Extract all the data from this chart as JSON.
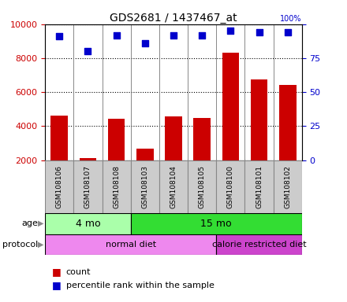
{
  "title": "GDS2681 / 1437467_at",
  "samples": [
    "GSM108106",
    "GSM108107",
    "GSM108108",
    "GSM108103",
    "GSM108104",
    "GSM108105",
    "GSM108100",
    "GSM108101",
    "GSM108102"
  ],
  "counts": [
    4600,
    2100,
    4450,
    2650,
    4550,
    4500,
    8300,
    6750,
    6400
  ],
  "percentile_ranks": [
    91,
    80,
    92,
    86,
    92,
    92,
    95,
    94,
    94
  ],
  "ylim_left": [
    2000,
    10000
  ],
  "ylim_right": [
    0,
    100
  ],
  "yticks_left": [
    2000,
    4000,
    6000,
    8000,
    10000
  ],
  "yticks_right": [
    0,
    25,
    50,
    75,
    100
  ],
  "bar_color": "#cc0000",
  "dot_color": "#0000cc",
  "age_groups": [
    {
      "label": "4 mo",
      "start": 0,
      "end": 3,
      "color": "#aaffaa"
    },
    {
      "label": "15 mo",
      "start": 3,
      "end": 9,
      "color": "#33dd33"
    }
  ],
  "protocol_groups": [
    {
      "label": "normal diet",
      "start": 0,
      "end": 6,
      "color": "#ee88ee"
    },
    {
      "label": "calorie restricted diet",
      "start": 6,
      "end": 9,
      "color": "#cc44cc"
    }
  ],
  "age_label": "age",
  "protocol_label": "protocol",
  "legend_count_label": "count",
  "legend_pct_label": "percentile rank within the sample",
  "background_color": "#ffffff",
  "tick_label_color_left": "#cc0000",
  "tick_label_color_right": "#0000cc",
  "cell_bg_color": "#cccccc",
  "cell_border_color": "#888888"
}
